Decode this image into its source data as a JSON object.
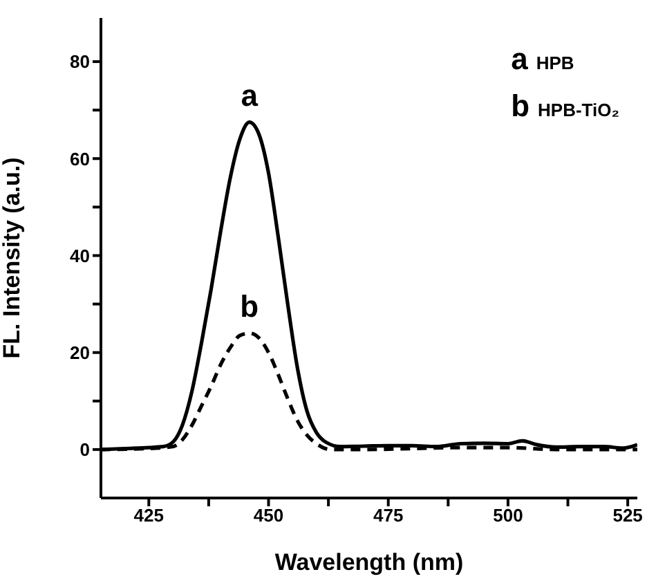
{
  "chart_data": {
    "type": "line",
    "xlabel": "Wavelength (nm)",
    "ylabel": "FL. Intensity (a.u.)",
    "xlim": [
      415,
      527
    ],
    "ylim": [
      -10,
      89
    ],
    "xticks": [
      425,
      {
        "value": 437.5,
        "label": null
      },
      450,
      {
        "value": 462.5,
        "label": null
      },
      475,
      {
        "value": 487.5,
        "label": null
      },
      500,
      {
        "value": 512.5,
        "label": null
      },
      525
    ],
    "yticks": [
      0,
      {
        "value": 10,
        "label": null
      },
      20,
      {
        "value": 30,
        "label": null
      },
      40,
      {
        "value": 50,
        "label": null
      },
      60,
      {
        "value": 70,
        "label": null
      },
      80
    ],
    "grid": false,
    "marker": "none",
    "series": [
      {
        "name": "a",
        "color": "#000000",
        "line_style": "solid",
        "x": [
          415,
          420,
          425,
          428,
          430,
          432,
          434,
          436,
          438,
          440,
          442,
          444,
          446,
          448,
          450,
          452,
          454,
          456,
          458,
          460,
          462,
          465,
          470,
          475,
          480,
          485,
          490,
          495,
          500,
          503,
          506,
          510,
          515,
          520,
          524,
          527
        ],
        "values": [
          0,
          0.2,
          0.4,
          0.6,
          1.5,
          5,
          12,
          22,
          33,
          45,
          56,
          64,
          67.5,
          65,
          57,
          44,
          30,
          17,
          8,
          3.5,
          1.5,
          0.6,
          0.7,
          0.8,
          0.8,
          0.6,
          1.2,
          1.3,
          1.2,
          1.8,
          1,
          0.5,
          0.6,
          0.6,
          0.3,
          1
        ]
      },
      {
        "name": "b",
        "color": "#000000",
        "line_style": "dashed",
        "x": [
          415,
          425,
          430,
          432,
          434,
          436,
          438,
          440,
          442,
          444,
          446,
          448,
          450,
          452,
          454,
          456,
          458,
          460,
          463,
          470,
          480,
          490,
          500,
          510,
          520,
          527
        ],
        "values": [
          0,
          0.2,
          0.6,
          2,
          5,
          9,
          13,
          17.5,
          21,
          23.5,
          24,
          23,
          20,
          15.5,
          10.5,
          6,
          3,
          1.2,
          0,
          0,
          0.2,
          0.4,
          0.4,
          0,
          0,
          0
        ]
      }
    ],
    "annotations": [
      "a HPB",
      "b HPB-TiO₂"
    ]
  }
}
